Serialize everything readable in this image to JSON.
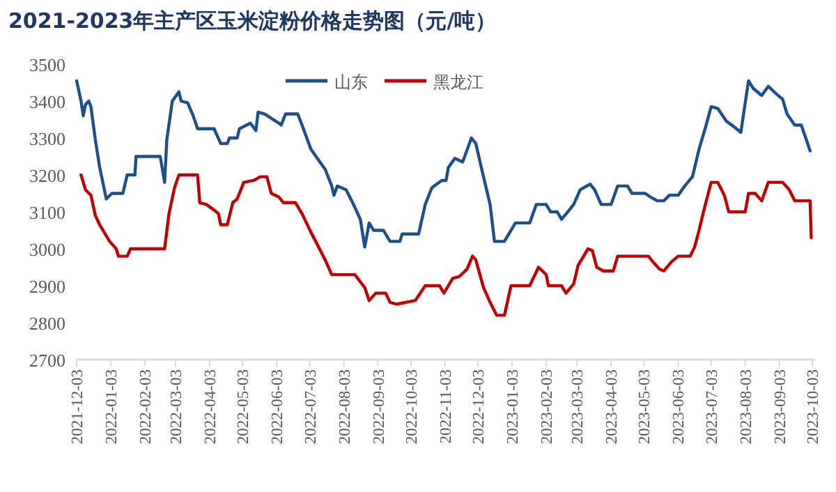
{
  "chart_data": {
    "type": "line",
    "title": "2021-2023年主产区玉米淀粉价格走势图（元/吨）",
    "ylim": [
      2700,
      3500
    ],
    "yticks": [
      2700,
      2800,
      2900,
      3000,
      3100,
      3200,
      3300,
      3400,
      3500
    ],
    "xlim": [
      "2021-12-03",
      "2023-10-03"
    ],
    "xticks": [
      "2021-12-03",
      "2022-01-03",
      "2022-02-03",
      "2022-03-03",
      "2022-04-03",
      "2022-05-03",
      "2022-06-03",
      "2022-07-03",
      "2022-08-03",
      "2022-09-03",
      "2022-10-03",
      "2022-11-03",
      "2022-12-03",
      "2023-01-03",
      "2023-02-03",
      "2023-03-03",
      "2023-04-03",
      "2023-05-03",
      "2023-06-03",
      "2023-07-03",
      "2023-08-03",
      "2023-09-03",
      "2023-10-03"
    ],
    "legend": "top",
    "grid": false,
    "series": [
      {
        "name": "山东",
        "color": "#1f4e8c",
        "x": [
          "2021-12-03",
          "2021-12-07",
          "2021-12-09",
          "2021-12-11",
          "2021-12-14",
          "2021-12-16",
          "2021-12-20",
          "2021-12-24",
          "2021-12-30",
          "2022-01-04",
          "2022-01-14",
          "2022-01-18",
          "2022-01-25",
          "2022-01-26",
          "2022-02-17",
          "2022-02-21",
          "2022-02-23",
          "2022-02-28",
          "2022-03-06",
          "2022-03-08",
          "2022-03-14",
          "2022-03-19",
          "2022-03-23",
          "2022-04-07",
          "2022-04-13",
          "2022-04-19",
          "2022-04-21",
          "2022-04-28",
          "2022-04-30",
          "2022-05-10",
          "2022-05-15",
          "2022-05-17",
          "2022-05-23",
          "2022-06-05",
          "2022-06-07",
          "2022-06-11",
          "2022-06-22",
          "2022-06-26",
          "2022-07-04",
          "2022-07-11",
          "2022-07-17",
          "2022-07-23",
          "2022-07-25",
          "2022-07-28",
          "2022-08-05",
          "2022-08-11",
          "2022-08-18",
          "2022-08-22",
          "2022-08-26",
          "2022-08-30",
          "2022-09-08",
          "2022-09-14",
          "2022-09-23",
          "2022-09-25",
          "2022-10-10",
          "2022-10-16",
          "2022-10-22",
          "2022-10-31",
          "2022-11-04",
          "2022-11-06",
          "2022-11-12",
          "2022-11-19",
          "2022-11-27",
          "2022-12-01",
          "2022-12-08",
          "2022-12-14",
          "2022-12-18",
          "2022-12-27",
          "2023-01-06",
          "2023-01-19",
          "2023-01-25",
          "2023-02-03",
          "2023-02-07",
          "2023-02-13",
          "2023-02-17",
          "2023-02-24",
          "2023-02-28",
          "2023-03-06",
          "2023-03-15",
          "2023-03-19",
          "2023-03-25",
          "2023-04-03",
          "2023-04-09",
          "2023-04-18",
          "2023-04-22",
          "2023-05-04",
          "2023-05-09",
          "2023-05-15",
          "2023-05-21",
          "2023-05-26",
          "2023-06-03",
          "2023-06-09",
          "2023-06-16",
          "2023-06-22",
          "2023-06-28",
          "2023-07-03",
          "2023-07-09",
          "2023-07-17",
          "2023-07-24",
          "2023-07-30",
          "2023-08-06",
          "2023-08-10",
          "2023-08-18",
          "2023-08-24",
          "2023-08-31",
          "2023-09-06",
          "2023-09-10",
          "2023-09-17",
          "2023-09-23",
          "2023-10-01"
        ],
        "values": [
          3455,
          3400,
          3360,
          3390,
          3400,
          3385,
          3295,
          3220,
          3135,
          3150,
          3150,
          3200,
          3200,
          3250,
          3250,
          3180,
          3295,
          3400,
          3425,
          3400,
          3395,
          3360,
          3325,
          3325,
          3285,
          3285,
          3300,
          3300,
          3325,
          3340,
          3320,
          3370,
          3365,
          3340,
          3335,
          3365,
          3365,
          3335,
          3270,
          3240,
          3215,
          3170,
          3145,
          3170,
          3160,
          3125,
          3080,
          3005,
          3070,
          3050,
          3050,
          3020,
          3020,
          3040,
          3040,
          3120,
          3165,
          3185,
          3185,
          3220,
          3245,
          3235,
          3300,
          3285,
          3195,
          3120,
          3020,
          3020,
          3070,
          3070,
          3120,
          3120,
          3100,
          3100,
          3080,
          3105,
          3120,
          3160,
          3175,
          3160,
          3120,
          3120,
          3170,
          3170,
          3150,
          3150,
          3140,
          3130,
          3130,
          3145,
          3145,
          3170,
          3195,
          3270,
          3330,
          3385,
          3380,
          3345,
          3330,
          3315,
          3455,
          3435,
          3415,
          3440,
          3420,
          3405,
          3365,
          3335,
          3335,
          3265
        ]
      },
      {
        "name": "黑龙江",
        "color": "#c00000",
        "x": [
          "2021-12-07",
          "2021-12-11",
          "2021-12-16",
          "2021-12-20",
          "2021-12-24",
          "2021-12-29",
          "2022-01-02",
          "2022-01-08",
          "2022-01-10",
          "2022-01-18",
          "2022-01-21",
          "2022-02-21",
          "2022-02-25",
          "2022-03-02",
          "2022-03-06",
          "2022-03-23",
          "2022-03-25",
          "2022-03-31",
          "2022-04-07",
          "2022-04-11",
          "2022-04-13",
          "2022-04-19",
          "2022-04-24",
          "2022-04-28",
          "2022-05-04",
          "2022-05-13",
          "2022-05-19",
          "2022-05-25",
          "2022-05-29",
          "2022-06-05",
          "2022-06-09",
          "2022-06-20",
          "2022-06-26",
          "2022-07-04",
          "2022-07-11",
          "2022-07-17",
          "2022-07-23",
          "2022-08-13",
          "2022-08-22",
          "2022-08-26",
          "2022-09-01",
          "2022-09-10",
          "2022-09-14",
          "2022-09-20",
          "2022-10-07",
          "2022-10-16",
          "2022-10-29",
          "2022-11-02",
          "2022-11-06",
          "2022-11-10",
          "2022-11-16",
          "2022-11-23",
          "2022-11-28",
          "2022-12-01",
          "2022-12-08",
          "2022-12-14",
          "2022-12-20",
          "2022-12-27",
          "2023-01-02",
          "2023-01-19",
          "2023-01-27",
          "2023-02-03",
          "2023-02-05",
          "2023-02-17",
          "2023-02-21",
          "2023-02-28",
          "2023-03-04",
          "2023-03-13",
          "2023-03-17",
          "2023-03-21",
          "2023-03-27",
          "2023-04-05",
          "2023-04-09",
          "2023-05-07",
          "2023-05-11",
          "2023-05-17",
          "2023-05-21",
          "2023-05-28",
          "2023-06-03",
          "2023-06-14",
          "2023-06-18",
          "2023-06-22",
          "2023-06-26",
          "2023-07-03",
          "2023-07-09",
          "2023-07-15",
          "2023-07-19",
          "2023-08-03",
          "2023-08-06",
          "2023-08-12",
          "2023-08-18",
          "2023-08-24",
          "2023-09-06",
          "2023-09-12",
          "2023-09-17",
          "2023-10-01",
          "2023-10-02"
        ],
        "values": [
          3200,
          3160,
          3145,
          3090,
          3065,
          3040,
          3020,
          3000,
          2980,
          2980,
          3000,
          3000,
          3095,
          3165,
          3200,
          3200,
          3125,
          3120,
          3105,
          3095,
          3065,
          3065,
          3125,
          3135,
          3180,
          3185,
          3195,
          3195,
          3150,
          3140,
          3125,
          3125,
          3095,
          3045,
          3005,
          2970,
          2930,
          2930,
          2895,
          2860,
          2880,
          2880,
          2855,
          2850,
          2860,
          2900,
          2900,
          2880,
          2900,
          2920,
          2925,
          2945,
          2980,
          2970,
          2895,
          2855,
          2820,
          2820,
          2900,
          2900,
          2950,
          2930,
          2900,
          2900,
          2880,
          2905,
          2955,
          3000,
          2995,
          2950,
          2940,
          2940,
          2980,
          2980,
          2965,
          2945,
          2940,
          2965,
          2980,
          2980,
          3005,
          3050,
          3100,
          3180,
          3180,
          3145,
          3100,
          3100,
          3150,
          3150,
          3130,
          3180,
          3180,
          3160,
          3130,
          3130,
          3030
        ]
      }
    ]
  }
}
